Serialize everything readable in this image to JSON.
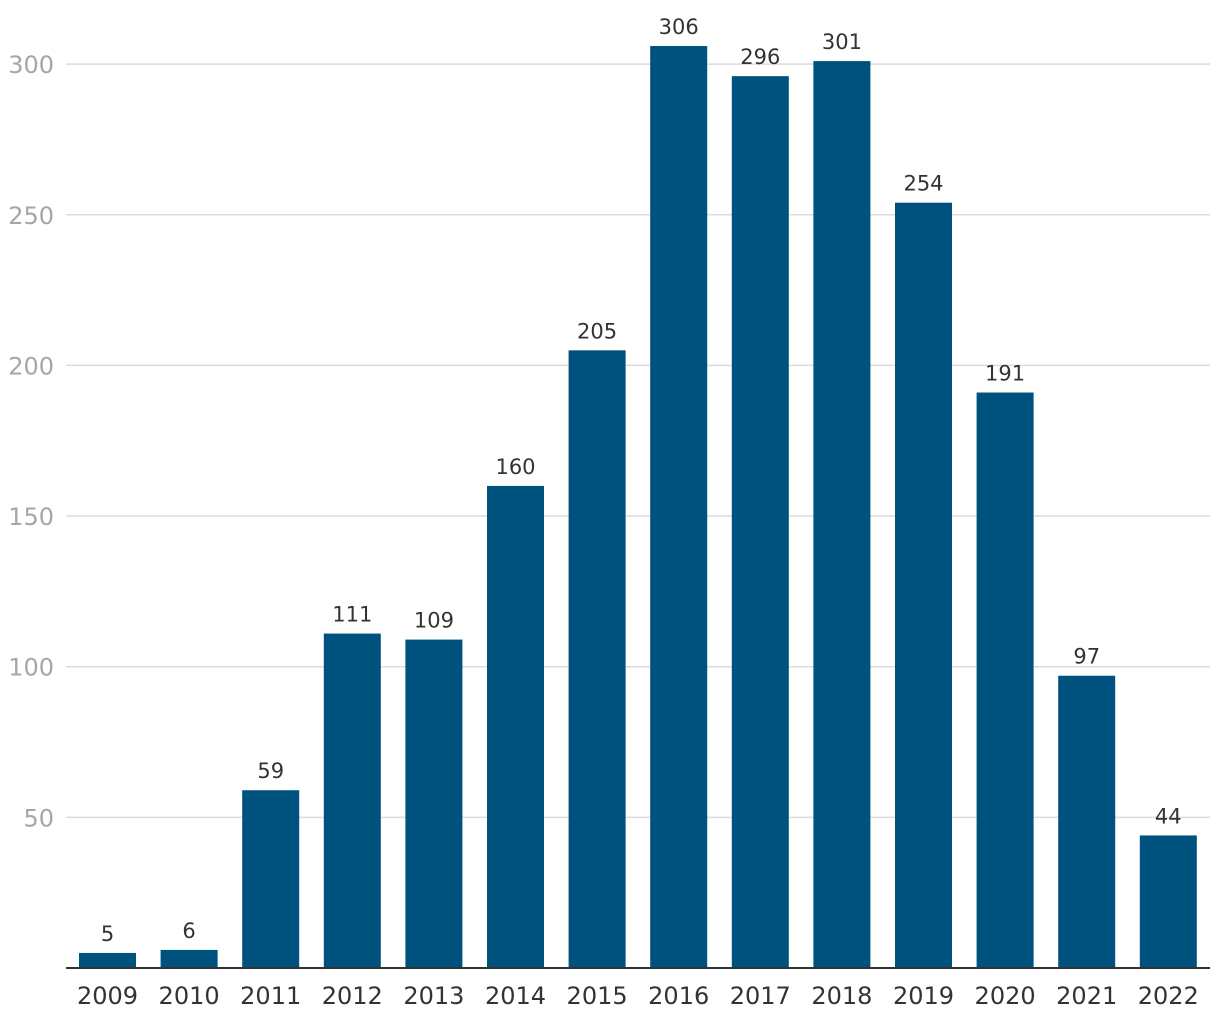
{
  "colors": {
    "bar": "#00527e",
    "grid": "#dcdcdc",
    "axis": "#333333",
    "ytick_text": "#a6a6a6",
    "label_text": "#333333"
  },
  "chart_data": {
    "type": "bar",
    "title": "",
    "xlabel": "",
    "ylabel": "",
    "categories": [
      "2009",
      "2010",
      "2011",
      "2012",
      "2013",
      "2014",
      "2015",
      "2016",
      "2017",
      "2018",
      "2019",
      "2020",
      "2021",
      "2022"
    ],
    "values": [
      5,
      6,
      59,
      111,
      109,
      160,
      205,
      306,
      296,
      301,
      254,
      191,
      97,
      44
    ],
    "data_labels": [
      "5",
      "6",
      "59",
      "111",
      "109",
      "160",
      "205",
      "306",
      "296",
      "301",
      "254",
      "191",
      "97",
      "44"
    ],
    "yticks": [
      50,
      100,
      150,
      200,
      250,
      300
    ],
    "ylim": [
      0,
      310
    ],
    "grid": true,
    "legend": "none"
  }
}
